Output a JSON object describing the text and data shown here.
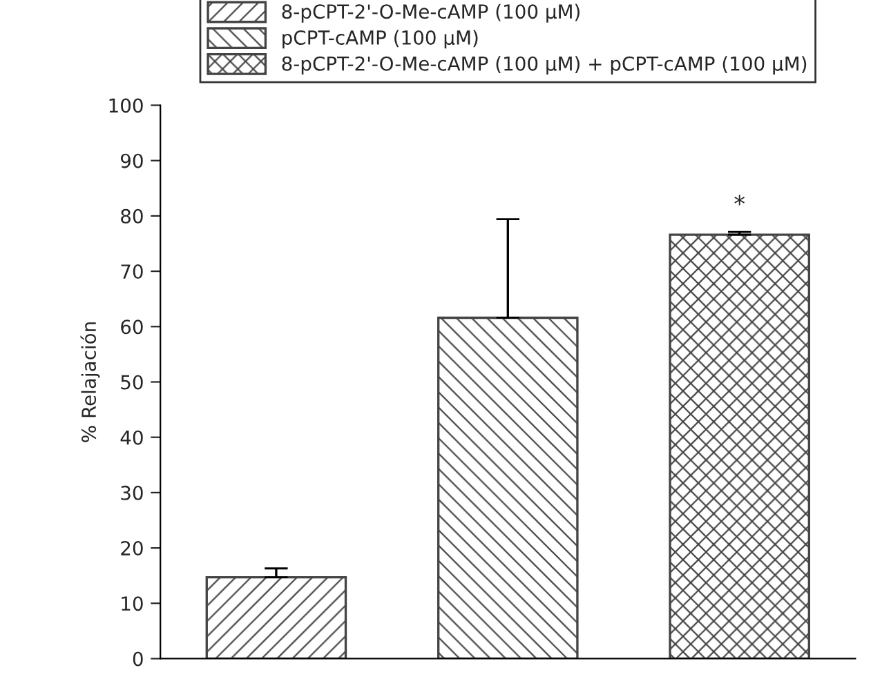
{
  "chart_data": {
    "type": "bar",
    "ylabel": "% Relajación",
    "categories": [
      null,
      null,
      null
    ],
    "series": [
      {
        "name": "8-pCPT-2'-O-Me-cAMP (100 µM)",
        "color": "#444444",
        "values": [
          14.7,
          null,
          null
        ],
        "errors": [
          1.6,
          null,
          null
        ]
      },
      {
        "name": "pCPT-cAMP (100 µM)",
        "color": "#444444",
        "values": [
          null,
          61.6,
          null
        ],
        "errors": [
          null,
          17.8,
          null
        ]
      },
      {
        "name": "8-pCPT-2'-O-Me-cAMP (100 µM) + pCPT-cAMP (100 µM)",
        "color": "#444444",
        "values": [
          null,
          null,
          76.6
        ],
        "errors": [
          null,
          null,
          0.5
        ]
      }
    ],
    "annotations": [
      "*"
    ],
    "ylim": [
      0,
      100
    ],
    "yticks": [
      0,
      10,
      20,
      30,
      40,
      50,
      60,
      70,
      80,
      90,
      100
    ],
    "grid": false,
    "legend": "top"
  }
}
